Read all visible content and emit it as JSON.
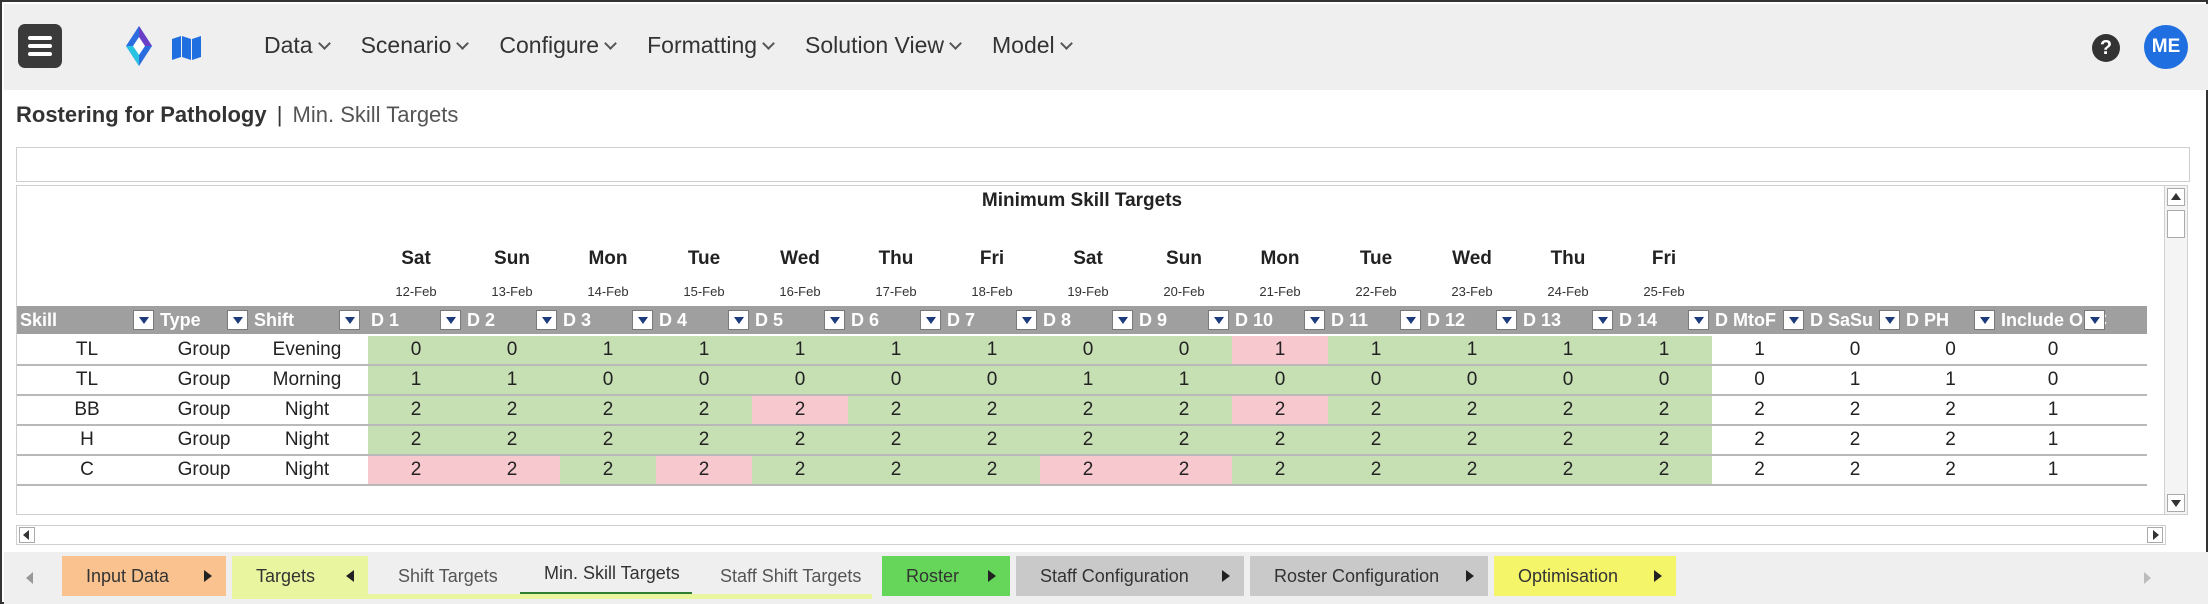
{
  "nav": {
    "items": [
      "Data",
      "Scenario",
      "Configure",
      "Formatting",
      "Solution View",
      "Model"
    ],
    "help_label": "?",
    "avatar_initials": "ME"
  },
  "breadcrumb": {
    "app": "Rostering for Pathology",
    "separator": "|",
    "page": "Min. Skill Targets"
  },
  "sheet": {
    "title": "Minimum Skill Targets",
    "days": [
      {
        "name": "Sat",
        "date": "12-Feb"
      },
      {
        "name": "Sun",
        "date": "13-Feb"
      },
      {
        "name": "Mon",
        "date": "14-Feb"
      },
      {
        "name": "Tue",
        "date": "15-Feb"
      },
      {
        "name": "Wed",
        "date": "16-Feb"
      },
      {
        "name": "Thu",
        "date": "17-Feb"
      },
      {
        "name": "Fri",
        "date": "18-Feb"
      },
      {
        "name": "Sat",
        "date": "19-Feb"
      },
      {
        "name": "Sun",
        "date": "20-Feb"
      },
      {
        "name": "Mon",
        "date": "21-Feb"
      },
      {
        "name": "Tue",
        "date": "22-Feb"
      },
      {
        "name": "Wed",
        "date": "23-Feb"
      },
      {
        "name": "Thu",
        "date": "24-Feb"
      },
      {
        "name": "Fri",
        "date": "25-Feb"
      }
    ],
    "columns": [
      "Skill",
      "Type",
      "Shift",
      "D 1",
      "D 2",
      "D 3",
      "D 4",
      "D 5",
      "D 6",
      "D 7",
      "D 8",
      "D 9",
      "D 10",
      "D 11",
      "D 12",
      "D 13",
      "D 14",
      "D MtoF",
      "D SaSu",
      "D PH",
      "Include OnC"
    ],
    "rows": [
      {
        "skill": "TL",
        "type": "Group",
        "shift": "Evening",
        "days": [
          0,
          0,
          1,
          1,
          1,
          1,
          1,
          0,
          0,
          1,
          1,
          1,
          1,
          1
        ],
        "flags": "gggggggggrgggg",
        "extra": [
          1,
          0,
          0,
          0
        ]
      },
      {
        "skill": "TL",
        "type": "Group",
        "shift": "Morning",
        "days": [
          1,
          1,
          0,
          0,
          0,
          0,
          0,
          1,
          1,
          0,
          0,
          0,
          0,
          0
        ],
        "flags": "gggggggggggggg",
        "extra": [
          0,
          1,
          1,
          0
        ]
      },
      {
        "skill": "BB",
        "type": "Group",
        "shift": "Night",
        "days": [
          2,
          2,
          2,
          2,
          2,
          2,
          2,
          2,
          2,
          2,
          2,
          2,
          2,
          2
        ],
        "flags": "ggggrggggrgggg",
        "extra": [
          2,
          2,
          2,
          1
        ]
      },
      {
        "skill": "H",
        "type": "Group",
        "shift": "Night",
        "days": [
          2,
          2,
          2,
          2,
          2,
          2,
          2,
          2,
          2,
          2,
          2,
          2,
          2,
          2
        ],
        "flags": "gggggggggggggg",
        "extra": [
          2,
          2,
          2,
          1
        ]
      },
      {
        "skill": "C",
        "type": "Group",
        "shift": "Night",
        "days": [
          2,
          2,
          2,
          2,
          2,
          2,
          2,
          2,
          2,
          2,
          2,
          2,
          2,
          2
        ],
        "flags": "rrgrgggrrggggg",
        "extra": [
          2,
          2,
          2,
          1
        ]
      }
    ],
    "colors": {
      "ok": "#c6e0b4",
      "short": "#f8c8cf",
      "header": "#9f9f9f"
    }
  },
  "tabs": [
    {
      "label": "Input Data",
      "bg": "#f9c28f",
      "arrow": "right"
    },
    {
      "label": "Targets",
      "bg": "#eaf5a0",
      "arrow": "left"
    },
    {
      "label": "Shift Targets",
      "bg": "",
      "arrow": ""
    },
    {
      "label": "Min. Skill Targets",
      "bg": "",
      "arrow": "",
      "active": true
    },
    {
      "label": "Staff Shift Targets",
      "bg": "",
      "arrow": ""
    },
    {
      "label": "Roster",
      "bg": "#66d65a",
      "arrow": "right"
    },
    {
      "label": "Staff Configuration",
      "bg": "#c9c9c9",
      "arrow": "right"
    },
    {
      "label": "Roster Configuration",
      "bg": "#c9c9c9",
      "arrow": "right"
    },
    {
      "label": "Optimisation",
      "bg": "#f5f56a",
      "arrow": "right"
    }
  ]
}
